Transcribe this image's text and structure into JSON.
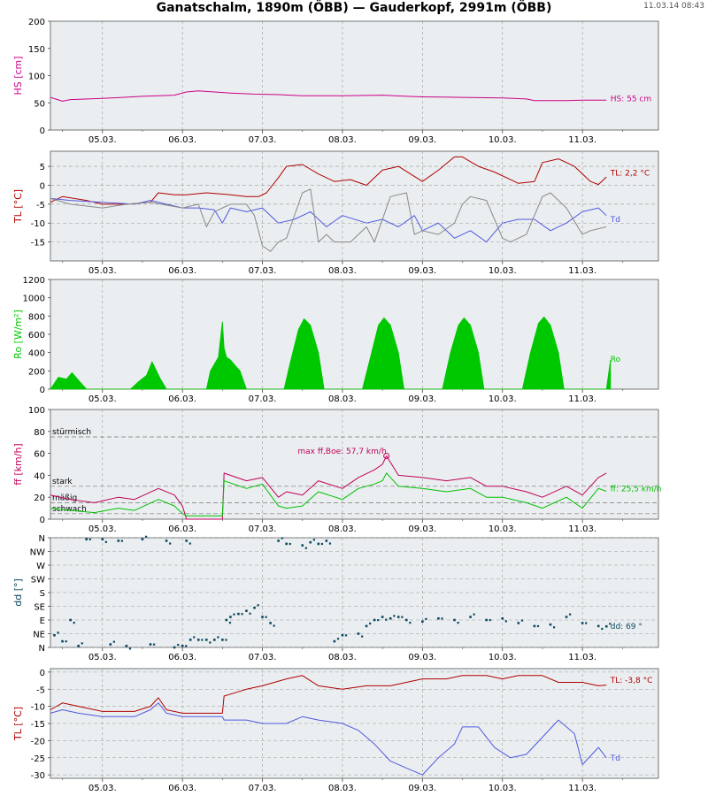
{
  "header": {
    "title": "Ganatschalm, 1890m (ÖBB) — Gauderkopf, 2991m (ÖBB)",
    "timestamp": "11.03.14 08:43"
  },
  "colors": {
    "panel_bg": "#eaeef0",
    "grid": "#999999",
    "snow": "#cc0088",
    "temp": "#b00000",
    "dewpoint": "#5058e0",
    "humid": "#888888",
    "radiation": "#00c800",
    "gust": "#c0005a",
    "wind": "#00c000",
    "direction": "#0a4860"
  },
  "x_axis": {
    "ticks": [
      "05.03.",
      "06.03.",
      "07.03.",
      "08.03.",
      "09.03.",
      "10.03.",
      "11.03."
    ]
  },
  "chart_data": [
    {
      "id": "hs",
      "type": "line",
      "ylabel": "HS [cm]",
      "ylim": [
        0,
        200
      ],
      "yticks": [
        "0",
        "50",
        "100",
        "150",
        "200"
      ],
      "grid": true,
      "series": [
        {
          "name": "HS",
          "color": "#cc0088",
          "x": [
            4.35,
            4.5,
            4.6,
            5.0,
            5.5,
            5.9,
            6.05,
            6.2,
            6.4,
            6.6,
            6.9,
            7.2,
            7.5,
            8.0,
            8.5,
            8.8,
            9.0,
            9.5,
            10.0,
            10.3,
            10.4,
            10.8,
            11.0,
            11.3
          ],
          "y": [
            60,
            53,
            56,
            58,
            62,
            64,
            70,
            72,
            70,
            68,
            66,
            65,
            63,
            63,
            64,
            62,
            61,
            60,
            59,
            57,
            54,
            54,
            55,
            55
          ]
        }
      ],
      "annotations": [
        {
          "text": "HS: 55 cm",
          "color": "#cc0088",
          "x": 11.35,
          "y": 58
        }
      ]
    },
    {
      "id": "tl",
      "type": "line",
      "ylabel": "TL [°C]",
      "ylim": [
        -20,
        9
      ],
      "yticks": [
        "5",
        "0",
        "-5",
        "-10",
        "-15"
      ],
      "grid": true,
      "series": [
        {
          "name": "TL",
          "color": "#b00000",
          "x": [
            4.35,
            4.5,
            4.8,
            5.0,
            5.3,
            5.6,
            5.7,
            5.9,
            6.05,
            6.3,
            6.6,
            6.8,
            6.95,
            7.05,
            7.2,
            7.3,
            7.5,
            7.7,
            7.9,
            8.1,
            8.3,
            8.5,
            8.7,
            9.0,
            9.2,
            9.4,
            9.5,
            9.7,
            9.9,
            10.1,
            10.2,
            10.4,
            10.5,
            10.7,
            10.9,
            11.1,
            11.2,
            11.3
          ],
          "y": [
            -4.5,
            -3,
            -4,
            -5,
            -5,
            -4.5,
            -2,
            -2.5,
            -2.5,
            -2,
            -2.5,
            -3,
            -3,
            -2,
            2,
            5,
            5.5,
            3,
            1,
            1.5,
            0,
            4,
            5,
            1,
            4,
            7.5,
            7.5,
            5,
            3.5,
            1.5,
            0.5,
            1,
            6,
            7,
            5,
            1,
            0.2,
            2.2
          ]
        },
        {
          "name": "Td",
          "color": "#5058e0",
          "x": [
            4.35,
            4.6,
            5.0,
            5.4,
            5.6,
            6.0,
            6.2,
            6.4,
            6.5,
            6.6,
            6.8,
            7.0,
            7.2,
            7.4,
            7.6,
            7.8,
            8.0,
            8.3,
            8.5,
            8.7,
            8.9,
            9.0,
            9.2,
            9.4,
            9.6,
            9.8,
            10.0,
            10.2,
            10.4,
            10.6,
            10.8,
            11.0,
            11.2,
            11.3
          ],
          "y": [
            -3.5,
            -4,
            -4.5,
            -5,
            -4,
            -6,
            -6,
            -6.5,
            -10,
            -6,
            -7,
            -6,
            -10,
            -9,
            -7,
            -11,
            -8,
            -10,
            -9,
            -11,
            -8,
            -12,
            -10,
            -14,
            -12,
            -15,
            -10,
            -9,
            -9,
            -12,
            -10,
            -7,
            -6,
            -8
          ]
        },
        {
          "name": "",
          "color": "#888888",
          "x": [
            4.35,
            4.6,
            5.0,
            5.3,
            5.6,
            6.0,
            6.2,
            6.3,
            6.4,
            6.6,
            6.8,
            6.9,
            7.0,
            7.1,
            7.2,
            7.3,
            7.5,
            7.6,
            7.7,
            7.8,
            7.9,
            8.1,
            8.3,
            8.4,
            8.6,
            8.8,
            8.9,
            9.0,
            9.2,
            9.4,
            9.5,
            9.6,
            9.8,
            10.0,
            10.1,
            10.3,
            10.5,
            10.6,
            10.8,
            11.0,
            11.1,
            11.3
          ],
          "y": [
            -3.5,
            -5,
            -6,
            -5,
            -4.5,
            -6,
            -5,
            -11,
            -7,
            -5,
            -5,
            -8,
            -16,
            -17.5,
            -15,
            -14,
            -2,
            -1,
            -15,
            -13,
            -15,
            -15,
            -11,
            -15,
            -3,
            -2,
            -13,
            -12,
            -13,
            -10,
            -5,
            -3,
            -4,
            -14,
            -15,
            -13,
            -3,
            -2,
            -6,
            -13,
            -12,
            -11
          ]
        }
      ],
      "annotations": [
        {
          "text": "TL: 2,2 °C",
          "color": "#b00000",
          "x": 11.35,
          "y": 3.3
        },
        {
          "text": "Td",
          "color": "#5058e0",
          "x": 11.35,
          "y": -9
        }
      ]
    },
    {
      "id": "ro",
      "type": "area",
      "ylabel": "Ro [W/m²]",
      "ylim": [
        0,
        1200
      ],
      "yticks": [
        "0",
        "200",
        "400",
        "600",
        "800",
        "1000",
        "1200"
      ],
      "grid": true,
      "series": [
        {
          "name": "Ro",
          "color": "#00c800",
          "x": [
            4.35,
            4.45,
            4.55,
            4.62,
            4.7,
            4.8,
            5.35,
            5.45,
            5.55,
            5.62,
            5.72,
            5.8,
            6.3,
            6.35,
            6.45,
            6.5,
            6.52,
            6.55,
            6.6,
            6.67,
            6.72,
            6.8,
            7.27,
            7.35,
            7.45,
            7.52,
            7.6,
            7.7,
            7.77,
            8.25,
            8.35,
            8.45,
            8.52,
            8.6,
            8.7,
            8.77,
            9.25,
            9.35,
            9.45,
            9.52,
            9.6,
            9.7,
            9.77,
            10.25,
            10.35,
            10.45,
            10.52,
            10.6,
            10.7,
            10.77,
            11.3,
            11.35
          ],
          "y": [
            0,
            130,
            110,
            180,
            100,
            0,
            0,
            80,
            150,
            300,
            120,
            0,
            0,
            200,
            350,
            740,
            450,
            350,
            320,
            250,
            200,
            0,
            0,
            300,
            650,
            770,
            700,
            400,
            0,
            0,
            350,
            700,
            780,
            700,
            400,
            0,
            0,
            400,
            700,
            780,
            700,
            400,
            0,
            0,
            400,
            720,
            790,
            700,
            400,
            0,
            0,
            320
          ]
        }
      ],
      "annotations": [
        {
          "text": "Ro",
          "color": "#00c800",
          "x": 11.35,
          "y": 330
        }
      ]
    },
    {
      "id": "ff",
      "type": "line",
      "ylabel": "ff [km/h]",
      "ylim": [
        0,
        100
      ],
      "yticks": [
        "0",
        "20",
        "40",
        "60",
        "80",
        "100"
      ],
      "grid": true,
      "thresholds": [
        {
          "label": "stürmisch",
          "y": 75
        },
        {
          "label": "stark",
          "y": 30
        },
        {
          "label": "mäßig",
          "y": 15
        },
        {
          "label": "schwach",
          "y": 5
        }
      ],
      "series": [
        {
          "name": "Böe",
          "color": "#c0005a",
          "x": [
            4.35,
            4.6,
            4.9,
            5.2,
            5.4,
            5.7,
            5.9,
            6.0,
            6.05,
            6.5,
            6.52,
            6.8,
            7.0,
            7.2,
            7.3,
            7.5,
            7.7,
            8.0,
            8.2,
            8.4,
            8.5,
            8.55,
            8.7,
            9.0,
            9.3,
            9.6,
            9.8,
            10.0,
            10.3,
            10.5,
            10.8,
            11.0,
            11.2,
            11.3
          ],
          "y": [
            22,
            18,
            15,
            20,
            18,
            28,
            22,
            12,
            0,
            0,
            42,
            35,
            38,
            20,
            25,
            22,
            35,
            28,
            38,
            45,
            50,
            57.7,
            40,
            38,
            35,
            38,
            30,
            30,
            25,
            20,
            30,
            22,
            38,
            42
          ]
        },
        {
          "name": "ff",
          "color": "#00c000",
          "x": [
            4.35,
            4.6,
            4.9,
            5.2,
            5.4,
            5.7,
            5.9,
            6.0,
            6.05,
            6.5,
            6.52,
            6.8,
            7.0,
            7.2,
            7.3,
            7.5,
            7.7,
            8.0,
            8.2,
            8.4,
            8.5,
            8.55,
            8.7,
            9.0,
            9.3,
            9.6,
            9.8,
            10.0,
            10.3,
            10.5,
            10.8,
            11.0,
            11.2,
            11.3
          ],
          "y": [
            10,
            8,
            6,
            10,
            8,
            18,
            12,
            5,
            3,
            3,
            35,
            28,
            32,
            12,
            10,
            12,
            25,
            18,
            28,
            32,
            35,
            42,
            30,
            28,
            25,
            28,
            20,
            20,
            15,
            10,
            20,
            10,
            28,
            25.5
          ]
        }
      ],
      "annotations": [
        {
          "text": "max ff,Boe: 57,7 km/h",
          "color": "#c0005a",
          "x": 8.55,
          "y": 62
        },
        {
          "text": "ff: 25,5 km/h",
          "color": "#00c000",
          "x": 11.35,
          "y": 28
        }
      ]
    },
    {
      "id": "dd",
      "type": "scatter",
      "ylabel": "dd [°]",
      "ylim": [
        0,
        360
      ],
      "yticks": [
        "N",
        "NE",
        "E",
        "SE",
        "S",
        "SW",
        "W",
        "NW",
        "N"
      ],
      "grid": true,
      "series": [
        {
          "name": "dd",
          "color": "#0a4860",
          "x": [
            4.4,
            4.5,
            4.6,
            4.7,
            4.8,
            5.0,
            5.1,
            5.2,
            5.3,
            5.5,
            5.6,
            5.8,
            5.9,
            6.0,
            6.05,
            6.1,
            6.2,
            6.3,
            6.4,
            6.5,
            6.55,
            6.6,
            6.7,
            6.8,
            6.9,
            7.0,
            7.1,
            7.2,
            7.3,
            7.5,
            7.6,
            7.7,
            7.8,
            7.9,
            8.0,
            8.2,
            8.3,
            8.4,
            8.5,
            8.6,
            8.7,
            8.8,
            9.0,
            9.2,
            9.4,
            9.6,
            9.8,
            10.0,
            10.2,
            10.4,
            10.6,
            10.8,
            11.0,
            11.2,
            11.3
          ],
          "y": [
            40,
            20,
            90,
            5,
            355,
            355,
            10,
            350,
            5,
            355,
            10,
            350,
            0,
            5,
            350,
            25,
            25,
            25,
            25,
            25,
            90,
            100,
            110,
            120,
            130,
            100,
            80,
            350,
            340,
            335,
            345,
            340,
            350,
            20,
            40,
            45,
            70,
            90,
            100,
            95,
            100,
            90,
            85,
            95,
            90,
            100,
            90,
            95,
            80,
            70,
            75,
            100,
            80,
            70,
            69
          ]
        }
      ],
      "annotations": [
        {
          "text": "dd: 69 °",
          "color": "#0a4860",
          "x": 11.35,
          "y": 69
        }
      ]
    },
    {
      "id": "tl2",
      "type": "line",
      "ylabel": "TL [°C]",
      "ylim": [
        -31,
        1
      ],
      "yticks": [
        "0",
        "-5",
        "-10",
        "-15",
        "-20",
        "-25",
        "-30"
      ],
      "grid": true,
      "series": [
        {
          "name": "TL",
          "color": "#b00000",
          "x": [
            4.35,
            4.5,
            4.7,
            5.0,
            5.4,
            5.6,
            5.7,
            5.8,
            6.0,
            6.5,
            6.52,
            6.8,
            7.0,
            7.3,
            7.5,
            7.7,
            8.0,
            8.3,
            8.6,
            9.0,
            9.3,
            9.5,
            9.8,
            10.0,
            10.2,
            10.5,
            10.7,
            11.0,
            11.2,
            11.3
          ],
          "y": [
            -11,
            -9,
            -10,
            -11.5,
            -11.5,
            -10,
            -7.5,
            -11,
            -12,
            -12,
            -7,
            -5,
            -4,
            -2,
            -1,
            -4,
            -5,
            -4,
            -4,
            -2,
            -2,
            -1,
            -1,
            -2,
            -1,
            -1,
            -3,
            -3,
            -4,
            -3.8
          ]
        },
        {
          "name": "Td",
          "color": "#5058e0",
          "x": [
            4.35,
            4.5,
            4.7,
            5.0,
            5.4,
            5.6,
            5.7,
            5.8,
            6.0,
            6.5,
            6.52,
            6.8,
            7.0,
            7.3,
            7.5,
            7.7,
            8.0,
            8.2,
            8.4,
            8.6,
            8.8,
            9.0,
            9.2,
            9.4,
            9.5,
            9.7,
            9.9,
            10.1,
            10.3,
            10.5,
            10.7,
            10.9,
            11.0,
            11.2,
            11.3
          ],
          "y": [
            -12,
            -11,
            -12,
            -13,
            -13,
            -11,
            -9,
            -12,
            -13,
            -13,
            -14,
            -14,
            -15,
            -15,
            -13,
            -14,
            -15,
            -17,
            -21,
            -26,
            -28,
            -30,
            -25,
            -21,
            -16,
            -16,
            -22,
            -25,
            -24,
            -19,
            -14,
            -18,
            -27,
            -22,
            -25
          ]
        }
      ],
      "annotations": [
        {
          "text": "TL: -3,8 °C",
          "color": "#b00000",
          "x": 11.35,
          "y": -2.3
        },
        {
          "text": "Td",
          "color": "#5058e0",
          "x": 11.35,
          "y": -25
        }
      ]
    }
  ]
}
